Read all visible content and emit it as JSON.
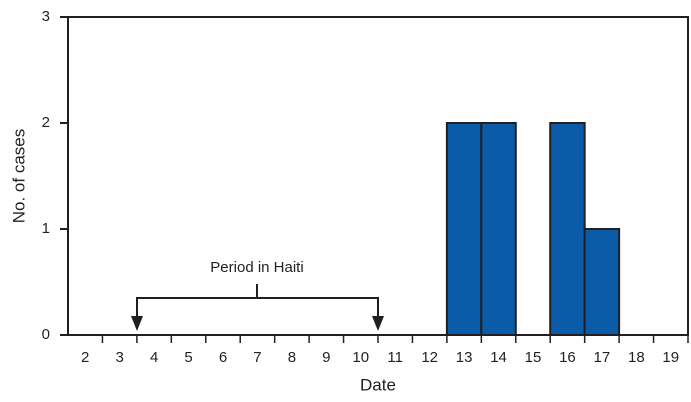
{
  "chart_data": {
    "type": "bar",
    "x_label": "Date",
    "y_label": "No. of cases",
    "categories": [
      "2",
      "3",
      "4",
      "5",
      "6",
      "7",
      "8",
      "9",
      "10",
      "11",
      "12",
      "13",
      "14",
      "15",
      "16",
      "17",
      "18",
      "19"
    ],
    "values": [
      0,
      0,
      0,
      0,
      0,
      0,
      0,
      0,
      0,
      0,
      0,
      2,
      2,
      0,
      2,
      1,
      0,
      0
    ],
    "color": "#0b5ca8",
    "ylim": [
      0,
      3
    ],
    "yticks": [
      0,
      1,
      2,
      3
    ],
    "annotation": "Period in Haiti"
  }
}
